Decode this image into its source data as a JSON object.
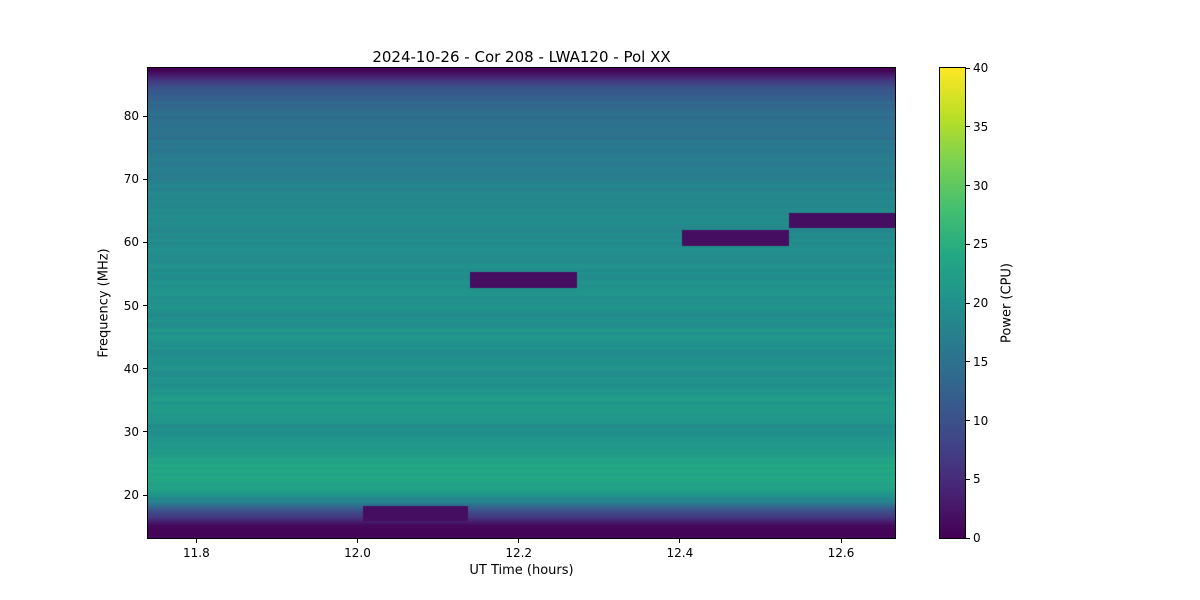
{
  "figure": {
    "title": "2024-10-26 - Cor 208 - LWA120 - Pol XX",
    "xlabel": "UT Time (hours)",
    "ylabel": "Frequency (MHz)",
    "colorbar_label": "Power (CPU)"
  },
  "chart_data": {
    "type": "heatmap",
    "title": "2024-10-26 - Cor 208 - LWA120 - Pol XX",
    "xlabel": "UT Time (hours)",
    "ylabel": "Frequency (MHz)",
    "x_range": [
      11.74,
      12.667
    ],
    "y_range": [
      13.2,
      87.6
    ],
    "xticks": [
      {
        "value": 11.8,
        "label": "11.8"
      },
      {
        "value": 12.0,
        "label": "12.0"
      },
      {
        "value": 12.2,
        "label": "12.2"
      },
      {
        "value": 12.4,
        "label": "12.4"
      },
      {
        "value": 12.6,
        "label": "12.6"
      }
    ],
    "yticks": [
      {
        "value": 20,
        "label": "20"
      },
      {
        "value": 30,
        "label": "30"
      },
      {
        "value": 40,
        "label": "40"
      },
      {
        "value": 50,
        "label": "50"
      },
      {
        "value": 60,
        "label": "60"
      },
      {
        "value": 70,
        "label": "70"
      },
      {
        "value": 80,
        "label": "80"
      }
    ],
    "colorbar": {
      "label": "Power (CPU)",
      "range": [
        0,
        40
      ],
      "ticks": [
        {
          "value": 0,
          "label": "0"
        },
        {
          "value": 5,
          "label": "5"
        },
        {
          "value": 10,
          "label": "10"
        },
        {
          "value": 15,
          "label": "15"
        },
        {
          "value": 20,
          "label": "20"
        },
        {
          "value": 25,
          "label": "25"
        },
        {
          "value": 30,
          "label": "30"
        },
        {
          "value": 35,
          "label": "35"
        },
        {
          "value": 40,
          "label": "40"
        }
      ]
    },
    "colormap": {
      "name": "viridis",
      "stops": [
        {
          "t": 0.0,
          "c": "#440154"
        },
        {
          "t": 0.1,
          "c": "#482475"
        },
        {
          "t": 0.2,
          "c": "#414487"
        },
        {
          "t": 0.3,
          "c": "#355f8d"
        },
        {
          "t": 0.4,
          "c": "#2a788e"
        },
        {
          "t": 0.5,
          "c": "#21918c"
        },
        {
          "t": 0.6,
          "c": "#22a884"
        },
        {
          "t": 0.7,
          "c": "#44bf70"
        },
        {
          "t": 0.8,
          "c": "#7ad151"
        },
        {
          "t": 0.9,
          "c": "#bddf26"
        },
        {
          "t": 1.0,
          "c": "#fde725"
        }
      ]
    },
    "background_profile": [
      [
        13.2,
        0.4
      ],
      [
        14.6,
        0.8
      ],
      [
        15.4,
        2.0
      ],
      [
        16.2,
        4.5
      ],
      [
        17.0,
        8.0
      ],
      [
        17.9,
        12.0
      ],
      [
        18.7,
        16.0
      ],
      [
        19.6,
        20.0
      ],
      [
        20.6,
        22.5
      ],
      [
        21.6,
        23.5
      ],
      [
        23.0,
        23.0
      ],
      [
        24.6,
        23.8
      ],
      [
        26.0,
        22.6
      ],
      [
        27.6,
        21.4
      ],
      [
        29.0,
        20.6
      ],
      [
        31.0,
        20.0
      ],
      [
        33.0,
        21.4
      ],
      [
        35.0,
        21.7
      ],
      [
        37.0,
        20.2
      ],
      [
        39.0,
        19.6
      ],
      [
        41.0,
        20.4
      ],
      [
        43.0,
        19.8
      ],
      [
        45.0,
        20.8
      ],
      [
        47.0,
        20.0
      ],
      [
        49.0,
        19.6
      ],
      [
        51.0,
        20.0
      ],
      [
        53.0,
        20.4
      ],
      [
        55.0,
        19.8
      ],
      [
        57.0,
        19.2
      ],
      [
        59.0,
        19.0
      ],
      [
        61.0,
        18.8
      ],
      [
        63.0,
        19.2
      ],
      [
        65.0,
        18.6
      ],
      [
        67.0,
        18.2
      ],
      [
        69.0,
        18.0
      ],
      [
        71.0,
        17.2
      ],
      [
        73.0,
        16.6
      ],
      [
        75.0,
        16.0
      ],
      [
        77.0,
        15.2
      ],
      [
        79.0,
        14.6
      ],
      [
        81.0,
        13.8
      ],
      [
        82.6,
        13.2
      ],
      [
        84.0,
        11.4
      ],
      [
        85.0,
        8.0
      ],
      [
        85.9,
        4.8
      ],
      [
        86.6,
        2.2
      ],
      [
        87.6,
        0.4
      ]
    ],
    "row_noise_amplitude": 0.8,
    "dropouts": [
      {
        "t_start": 12.007,
        "t_end": 12.137,
        "f_start": 15.9,
        "f_end": 18.2,
        "power": 1.5
      },
      {
        "t_start": 12.14,
        "t_end": 12.272,
        "f_start": 52.8,
        "f_end": 55.3,
        "power": 1.5
      },
      {
        "t_start": 12.403,
        "t_end": 12.535,
        "f_start": 59.5,
        "f_end": 61.9,
        "power": 1.5
      },
      {
        "t_start": 12.535,
        "t_end": 12.667,
        "f_start": 62.2,
        "f_end": 64.6,
        "power": 1.5
      }
    ]
  }
}
